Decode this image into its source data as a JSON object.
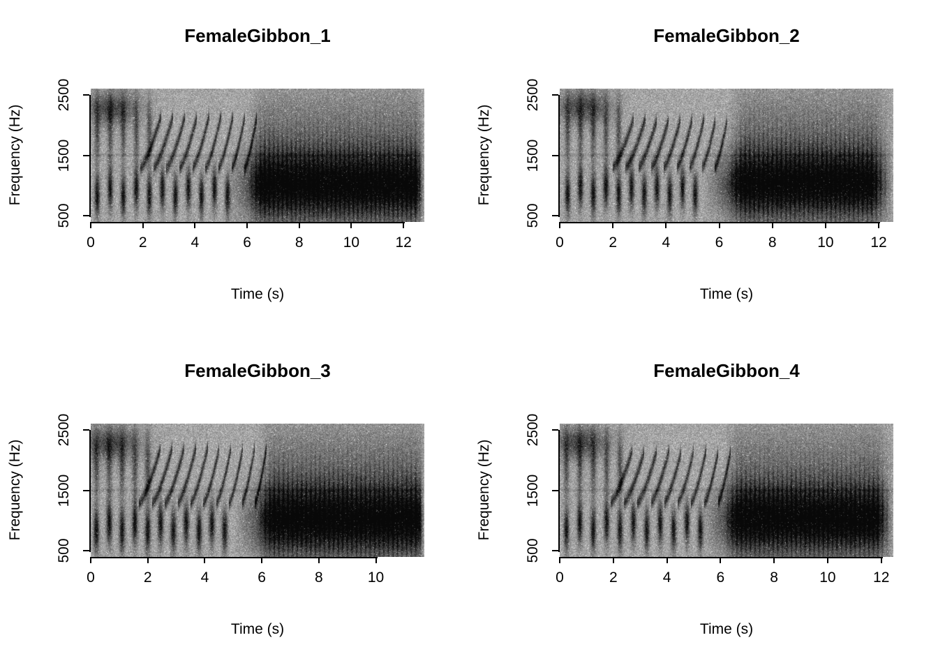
{
  "figure": {
    "background": "#ffffff",
    "text_color": "#000000",
    "description": "2x2 grid of grayscale spectrograms of four female gibbon great calls (R base graphics style)"
  },
  "chart_data": {
    "type": "heatmap",
    "subtype": "spectrogram",
    "layout": "2x2-grid",
    "colormap": "grayscale, darker = higher amplitude",
    "shared_xlabel": "Time (s)",
    "shared_ylabel": "Frequency (Hz)",
    "panels": [
      {
        "title": "FemaleGibbon_1",
        "xlabel": "Time (s)",
        "ylabel": "Frequency (Hz)",
        "x_ticks": [
          0,
          2,
          4,
          6,
          8,
          10,
          12
        ],
        "y_ticks": [
          500,
          1500,
          2500
        ],
        "x_range": [
          0,
          12.8
        ],
        "y_range": [
          400,
          2600
        ],
        "seed": 101,
        "tail_fade": 0.3,
        "content_summary": "Intro notes 0-2 s near 600-1100 Hz, accelerating up-sweeping chirps 2-6 s rising 1300-2200 Hz, dense trill with sustained dark band 600-1600 Hz from ~6 s to end",
        "call": {
          "intro_notes": {
            "t_start": 0.25,
            "t_end": 5.4,
            "spacing": 0.5,
            "f_center": 880,
            "f_width": 240
          },
          "chirps": {
            "count": 9,
            "t_first": 1.9,
            "spacing": 0.5,
            "f_start": 1280,
            "f_end": 2150,
            "dur": 0.8
          },
          "trill": {
            "t_start": 6.0,
            "period": 0.17,
            "f_low": 620,
            "f_high": 1560
          },
          "sustained_band": {
            "t_start": 5.2,
            "f_center": 1000,
            "f_width": 380
          },
          "high_blob": {
            "t": 0.8,
            "f": 2280
          }
        }
      },
      {
        "title": "FemaleGibbon_2",
        "xlabel": "Time (s)",
        "ylabel": "Frequency (Hz)",
        "x_ticks": [
          0,
          2,
          4,
          6,
          8,
          10,
          12
        ],
        "y_ticks": [
          500,
          1500,
          2500
        ],
        "x_range": [
          0,
          12.55
        ],
        "y_range": [
          400,
          2600
        ],
        "seed": 202,
        "tail_fade": 0.8,
        "content_summary": "Same call structure: intro notes, rising chirp series 2-6 s, trill and dark 600-1600 Hz band 6-12 s, fading at the end",
        "call": {
          "intro_notes": {
            "t_start": 0.3,
            "t_end": 5.3,
            "spacing": 0.48,
            "f_center": 900,
            "f_width": 240
          },
          "chirps": {
            "count": 9,
            "t_first": 2.0,
            "spacing": 0.48,
            "f_start": 1300,
            "f_end": 2100,
            "dur": 0.78
          },
          "trill": {
            "t_start": 6.3,
            "period": 0.17,
            "f_low": 640,
            "f_high": 1580
          },
          "sustained_band": {
            "t_start": 5.4,
            "f_center": 1020,
            "f_width": 370
          },
          "high_blob": {
            "t": 0.9,
            "f": 2300
          }
        }
      },
      {
        "title": "FemaleGibbon_3",
        "xlabel": "Time (s)",
        "ylabel": "Frequency (Hz)",
        "x_ticks": [
          0,
          2,
          4,
          6,
          8,
          10
        ],
        "y_ticks": [
          500,
          1500,
          2500
        ],
        "x_range": [
          0,
          11.7
        ],
        "y_range": [
          400,
          2600
        ],
        "seed": 303,
        "tail_fade": 0.2,
        "content_summary": "Shorter call (~11.7 s): intro notes, chirps 2-5.8 s, strong trill and dark band from ~5.8 s to end",
        "call": {
          "intro_notes": {
            "t_start": 0.2,
            "t_end": 5.0,
            "spacing": 0.45,
            "f_center": 880,
            "f_width": 250
          },
          "chirps": {
            "count": 10,
            "t_first": 1.7,
            "spacing": 0.45,
            "f_start": 1280,
            "f_end": 2200,
            "dur": 0.75
          },
          "trill": {
            "t_start": 5.8,
            "period": 0.16,
            "f_low": 620,
            "f_high": 1600
          },
          "sustained_band": {
            "t_start": 5.0,
            "f_center": 1000,
            "f_width": 390
          },
          "high_blob": {
            "t": 0.7,
            "f": 2280
          }
        }
      },
      {
        "title": "FemaleGibbon_4",
        "xlabel": "Time (s)",
        "ylabel": "Frequency (Hz)",
        "x_ticks": [
          0,
          2,
          4,
          6,
          8,
          10,
          12
        ],
        "y_ticks": [
          500,
          1500,
          2500
        ],
        "x_range": [
          0,
          12.45
        ],
        "y_range": [
          400,
          2600
        ],
        "seed": 404,
        "tail_fade": 0.6,
        "content_summary": "Intro notes 0-2 s, chirp series 2-6 s rising to ~2150 Hz, trill with sustained dark 600-1600 Hz band 6-12 s",
        "call": {
          "intro_notes": {
            "t_start": 0.25,
            "t_end": 5.4,
            "spacing": 0.5,
            "f_center": 890,
            "f_width": 240
          },
          "chirps": {
            "count": 9,
            "t_first": 1.9,
            "spacing": 0.5,
            "f_start": 1290,
            "f_end": 2150,
            "dur": 0.8
          },
          "trill": {
            "t_start": 6.1,
            "period": 0.17,
            "f_low": 630,
            "f_high": 1570
          },
          "sustained_band": {
            "t_start": 5.3,
            "f_center": 1010,
            "f_width": 380
          },
          "high_blob": {
            "t": 0.8,
            "f": 2290
          }
        }
      }
    ]
  }
}
